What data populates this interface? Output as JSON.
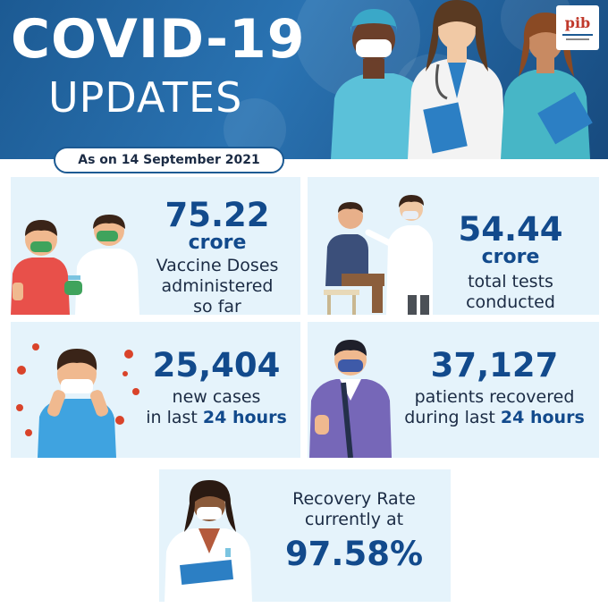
{
  "header": {
    "title_line1": "COVID-19",
    "title_line2": "UPDATES",
    "date_text": "As on 14 September 2021",
    "logo_text": "pib"
  },
  "stats": {
    "vaccine": {
      "value": "75.22",
      "unit": "crore",
      "line1": "Vaccine Doses",
      "line2": "administered",
      "line3": "so far"
    },
    "tests": {
      "value": "54.44",
      "unit": "crore",
      "line1": "total tests",
      "line2": "conducted"
    },
    "cases": {
      "value": "25,404",
      "line1": "new cases",
      "line2_prefix": "in last",
      "line2_hours": "24 hours"
    },
    "recovered": {
      "value": "37,127",
      "line1": "patients recovered",
      "line2_prefix": "during last",
      "line2_hours": "24 hours"
    },
    "recovery_rate": {
      "line1": "Recovery Rate",
      "line2": "currently at",
      "value": "97.58%"
    }
  },
  "colors": {
    "header_bg": "#1c5a93",
    "card_bg": "#e5f3fb",
    "accent_blue": "#124a8c",
    "text_dark": "#1b2b44",
    "virus_red": "#d9432a"
  }
}
